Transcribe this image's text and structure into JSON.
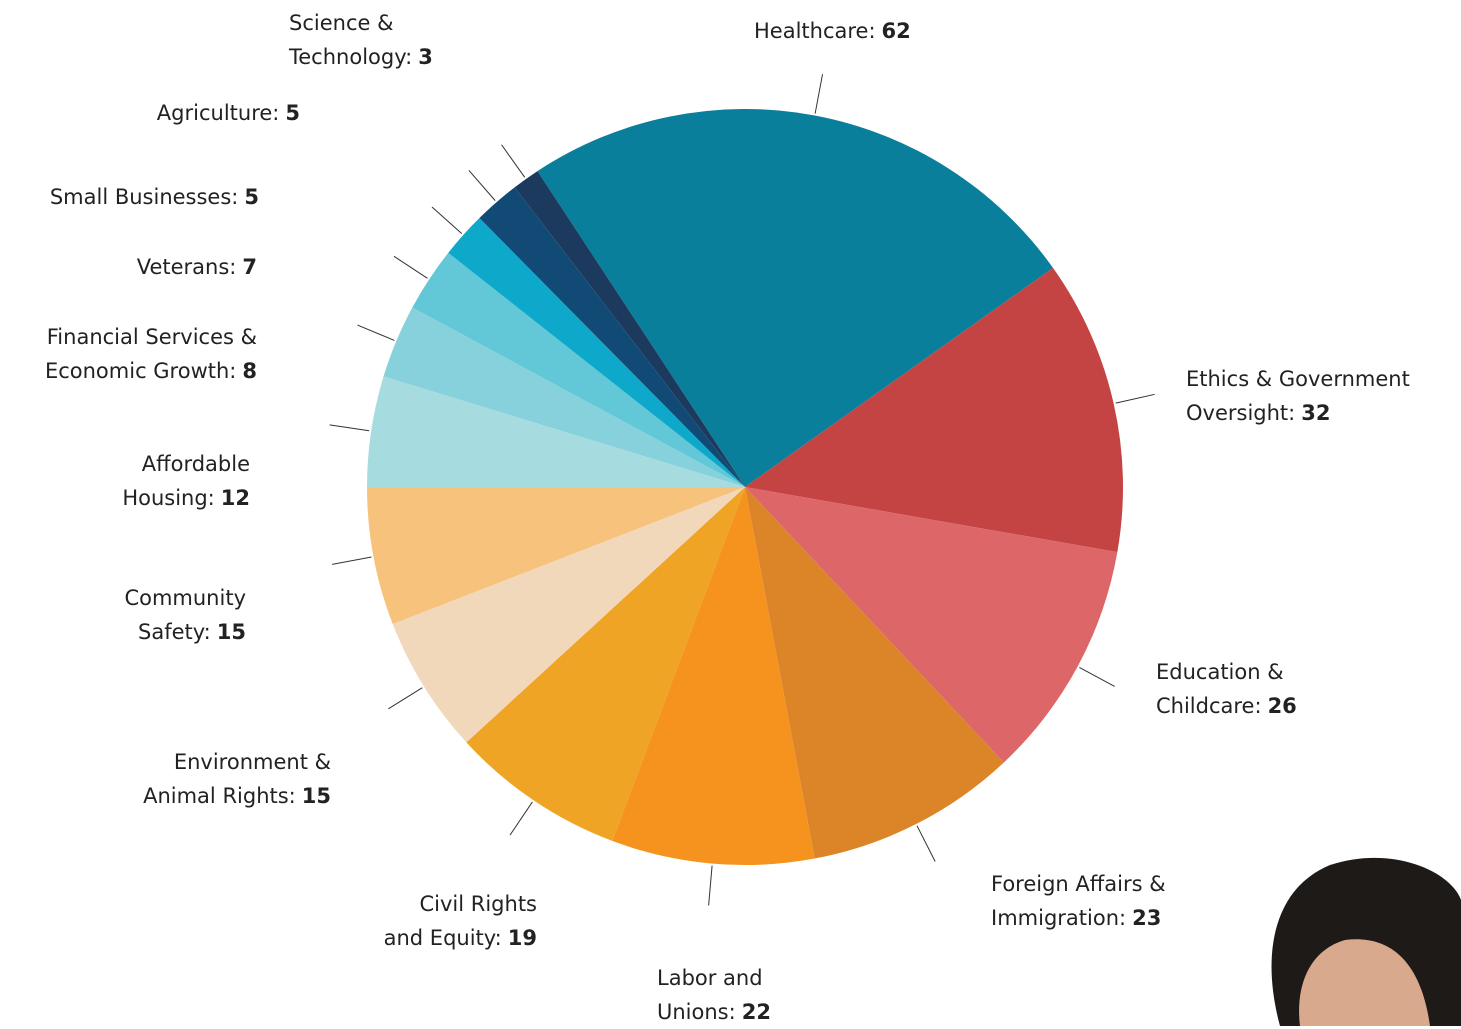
{
  "chart_data": {
    "type": "pie",
    "categories": [
      "Healthcare:",
      "Ethics & Government\nOversight:",
      "Education &\nChildcare:",
      "Foreign Affairs &\nImmigration:",
      "Labor and\nUnions:",
      "Civil Rights\nand Equity:",
      "Environment &\nAnimal Rights:",
      "Community\nSafety:",
      "Affordable\nHousing:",
      "Financial Services &\nEconomic Growth:",
      "Veterans:",
      "Small Businesses:",
      "Agriculture:",
      "Science &\nTechnology:"
    ],
    "values": [
      62,
      32,
      26,
      23,
      22,
      19,
      15,
      15,
      12,
      8,
      7,
      5,
      5,
      3
    ],
    "colors": [
      "#0a7f9b",
      "#c44444",
      "#dc6668",
      "#db8428",
      "#f5931e",
      "#f0a425",
      "#f2d8bb",
      "#f7c27b",
      "#a6dcdf",
      "#86d1db",
      "#62c8d8",
      "#0ea8cb",
      "#104a75",
      "#1c3a5e"
    ]
  }
}
